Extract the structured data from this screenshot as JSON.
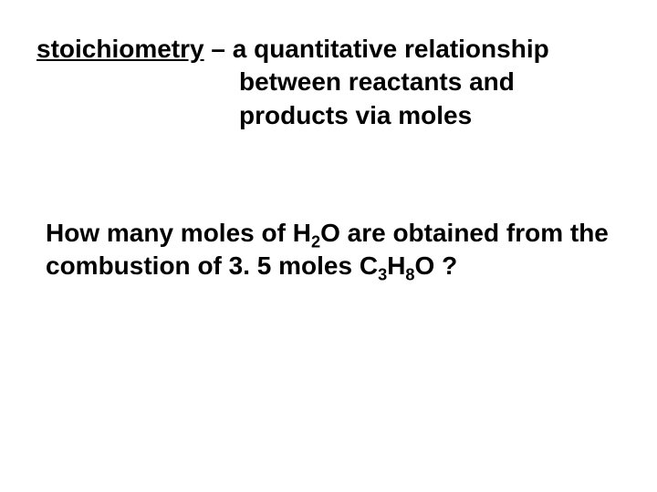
{
  "definition": {
    "term": "stoichiometry",
    "sep": " – ",
    "line1_rest": "a quantitative relationship",
    "line2": "between reactants and",
    "line3": "products via moles"
  },
  "question": {
    "part1": "How many moles of H",
    "sub1": "2",
    "part2": "O are obtained from the combustion of 3. 5 moles C",
    "sub2": "3",
    "part3": "H",
    "sub3": "8",
    "part4": "O ?"
  },
  "style": {
    "background": "#ffffff",
    "text_color": "#000000",
    "font_family": "Arial",
    "title_fontsize_pt": 21,
    "body_fontsize_pt": 21,
    "font_weight": "bold"
  }
}
